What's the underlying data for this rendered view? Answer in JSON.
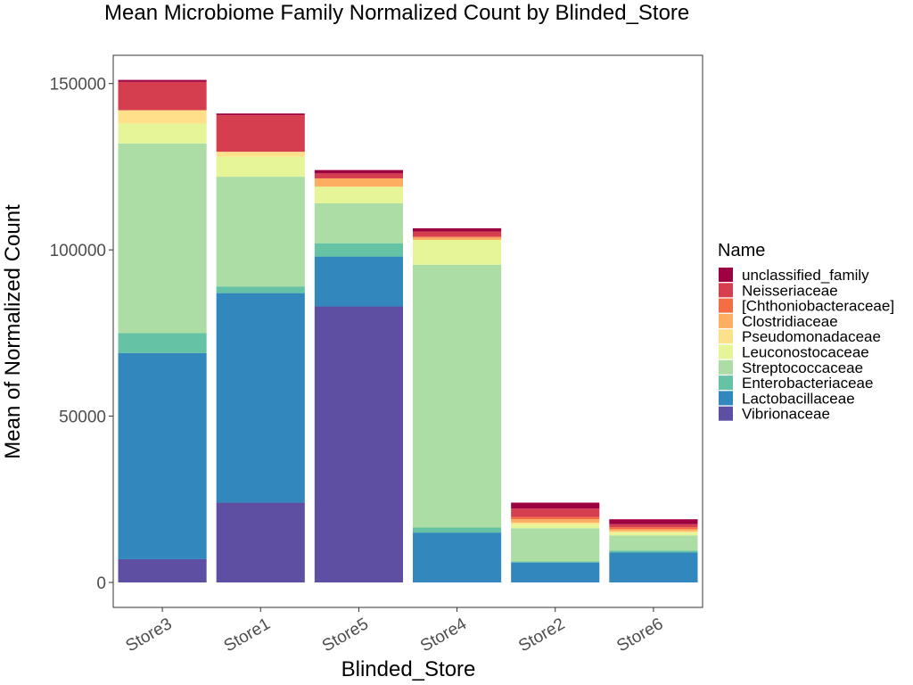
{
  "chart_data": {
    "type": "bar",
    "stacked": true,
    "title": "Mean Microbiome Family Normalized Count by Blinded_Store",
    "xlabel": "Blinded_Store",
    "ylabel": "Mean of Normalized Count",
    "ylim": [
      -7500,
      158500
    ],
    "yticks": [
      0,
      50000,
      100000,
      150000
    ],
    "ytick_labels": [
      "0",
      "50000",
      "100000",
      "150000"
    ],
    "grid": false,
    "legend_position": "right",
    "legend_title": "Name",
    "categories": [
      "Store3",
      "Store1",
      "Store5",
      "Store4",
      "Store2",
      "Store6"
    ],
    "series": [
      {
        "name": "Vibrionaceae",
        "color": "#5E4FA2",
        "values": [
          7000,
          24000,
          83000,
          0,
          0,
          0
        ]
      },
      {
        "name": "Lactobacillaceae",
        "color": "#3288BD",
        "values": [
          62000,
          63000,
          15000,
          15000,
          6000,
          9000
        ]
      },
      {
        "name": "Enterobacteriaceae",
        "color": "#66C2A5",
        "values": [
          6000,
          2000,
          4000,
          1500,
          300,
          600
        ]
      },
      {
        "name": "Streptococcaceae",
        "color": "#ABDDA4",
        "values": [
          57000,
          33000,
          12000,
          79000,
          10000,
          4500
        ]
      },
      {
        "name": "Leuconostocaceae",
        "color": "#E6F598",
        "values": [
          6000,
          6000,
          5000,
          7500,
          1200,
          900
        ]
      },
      {
        "name": "Pseudomonadaceae",
        "color": "#FEE08B",
        "values": [
          4000,
          1500,
          0,
          0,
          500,
          400
        ]
      },
      {
        "name": "Clostridiaceae",
        "color": "#FDAE61",
        "values": [
          0,
          0,
          2500,
          700,
          1000,
          600
        ]
      },
      {
        "name": "[Chthoniobacteraceae]",
        "color": "#F46D43",
        "values": [
          0,
          0,
          0,
          300,
          700,
          600
        ]
      },
      {
        "name": "Neisseriaceae",
        "color": "#D53E4F",
        "values": [
          8500,
          11000,
          1500,
          1500,
          2500,
          900
        ]
      },
      {
        "name": "unclassified_family",
        "color": "#9E0142",
        "values": [
          600,
          500,
          1000,
          1000,
          1800,
          1500
        ]
      }
    ]
  }
}
